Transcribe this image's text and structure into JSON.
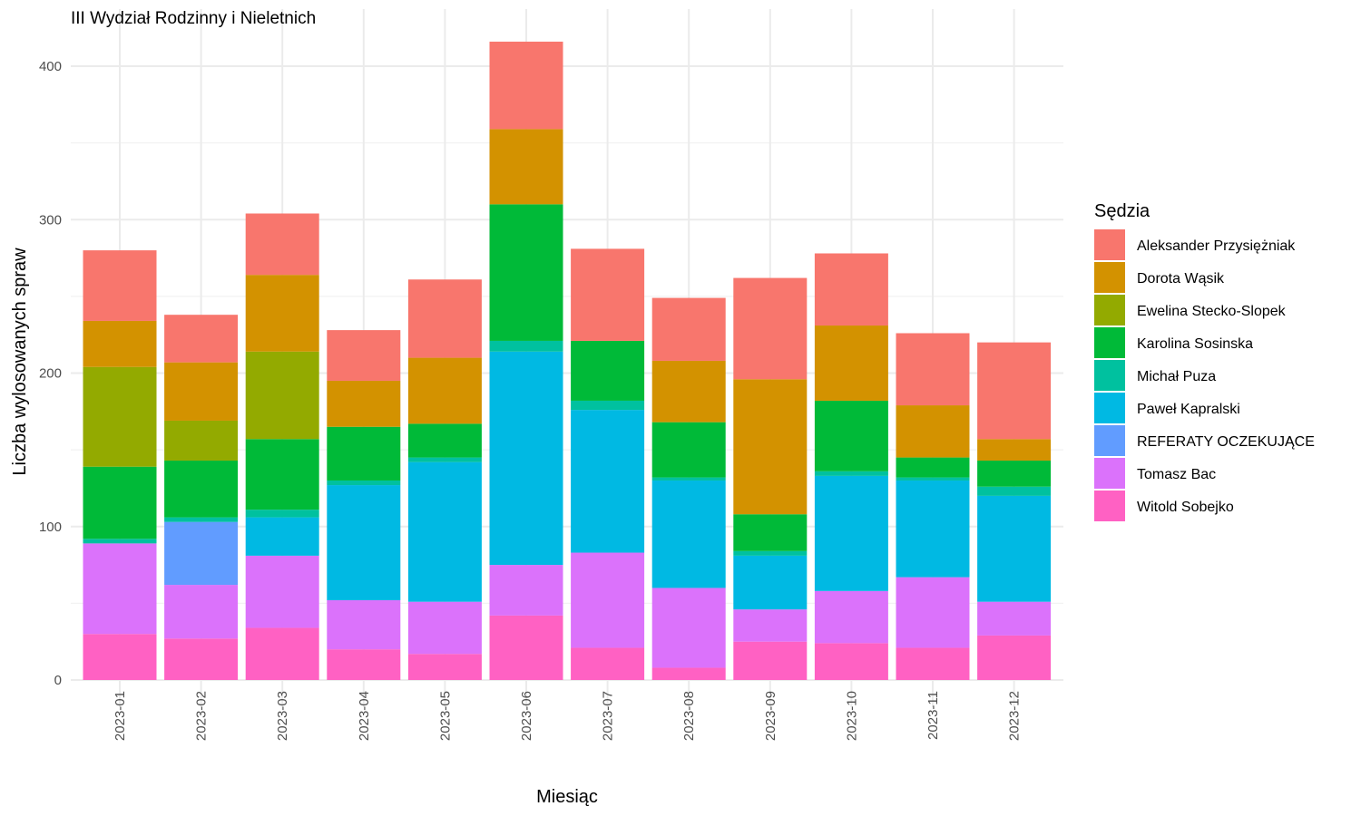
{
  "chart_data": {
    "type": "bar",
    "stacked": true,
    "title": "III Wydział Rodzinny i Nieletnich",
    "xlabel": "Miesiąc",
    "ylabel": "Liczba wylosowanych spraw",
    "ylim": [
      0,
      420
    ],
    "yticks": [
      0,
      100,
      200,
      300,
      400
    ],
    "grid": true,
    "legend": {
      "title": "Sędzia",
      "position": "right"
    },
    "categories": [
      "2023-01",
      "2023-02",
      "2023-03",
      "2023-04",
      "2023-05",
      "2023-06",
      "2023-07",
      "2023-08",
      "2023-09",
      "2023-10",
      "2023-11",
      "2023-12"
    ],
    "series": [
      {
        "name": "Aleksander Przysiężniak",
        "color": "#F8766D",
        "values": [
          46,
          31,
          40,
          33,
          51,
          57,
          60,
          41,
          66,
          47,
          47,
          63
        ]
      },
      {
        "name": "Dorota Wąsik",
        "color": "#D39200",
        "values": [
          30,
          38,
          50,
          30,
          43,
          49,
          0,
          40,
          88,
          49,
          34,
          14
        ]
      },
      {
        "name": "Ewelina Stecko-Slopek",
        "color": "#93AA00",
        "values": [
          65,
          26,
          57,
          0,
          0,
          0,
          0,
          0,
          0,
          0,
          0,
          0
        ]
      },
      {
        "name": "Karolina Sosinska",
        "color": "#00BA38",
        "values": [
          47,
          37,
          46,
          35,
          22,
          89,
          39,
          36,
          24,
          46,
          13,
          17
        ]
      },
      {
        "name": "Michał Puza",
        "color": "#00C19F",
        "values": [
          3,
          3,
          5,
          3,
          3,
          7,
          6,
          2,
          3,
          3,
          2,
          6
        ]
      },
      {
        "name": "Paweł Kapralski",
        "color": "#00B9E3",
        "values": [
          0,
          0,
          25,
          75,
          91,
          139,
          93,
          70,
          35,
          75,
          63,
          69
        ]
      },
      {
        "name": "REFERATY OCZEKUJĄCE",
        "color": "#619CFF",
        "values": [
          0,
          41,
          0,
          0,
          0,
          0,
          0,
          0,
          0,
          0,
          0,
          0
        ]
      },
      {
        "name": "Tomasz Bac",
        "color": "#DB72FB",
        "values": [
          59,
          35,
          47,
          32,
          34,
          33,
          62,
          52,
          21,
          34,
          46,
          22
        ]
      },
      {
        "name": "Witold Sobejko",
        "color": "#FF61C3",
        "values": [
          30,
          27,
          34,
          20,
          17,
          42,
          21,
          8,
          25,
          24,
          21,
          29
        ]
      }
    ],
    "stack_order_bottom_to_top": [
      "Witold Sobejko",
      "Tomasz Bac",
      "REFERATY OCZEKUJĄCE",
      "Paweł Kapralski",
      "Michał Puza",
      "Karolina Sosinska",
      "Ewelina Stecko-Slopek",
      "Dorota Wąsik",
      "Aleksander Przysiężniak"
    ]
  }
}
